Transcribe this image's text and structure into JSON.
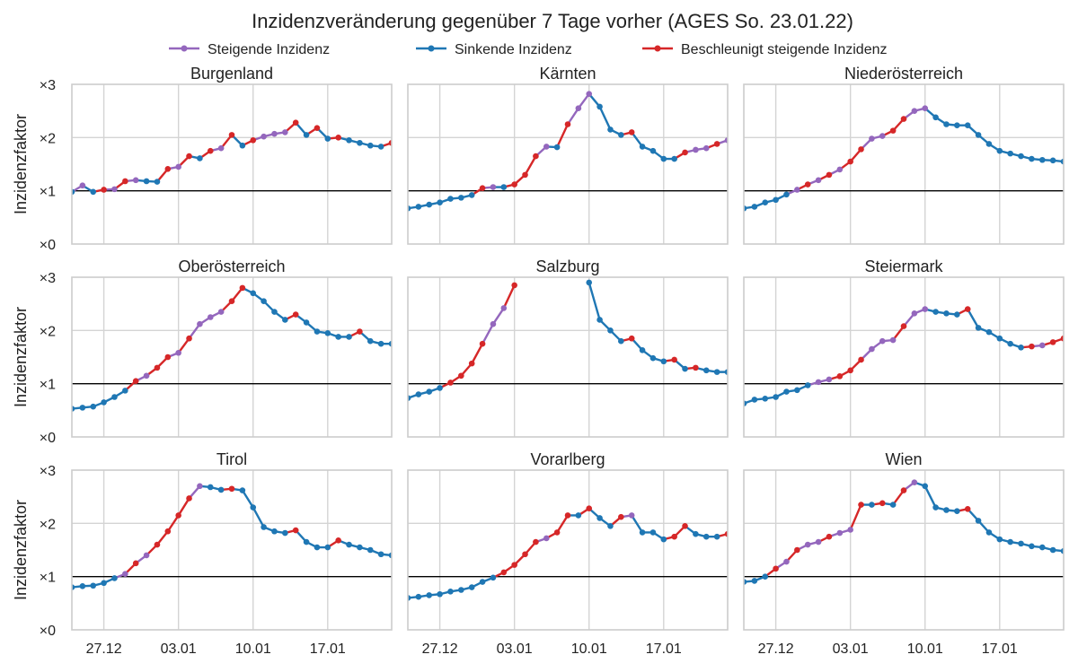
{
  "title": "Inzidenzveränderung gegenüber 7 Tage vorher (AGES So. 23.01.22)",
  "legend": [
    {
      "label": "Steigende Inzidenz",
      "color": "#9467bd"
    },
    {
      "label": "Sinkende Inzidenz",
      "color": "#1f77b4"
    },
    {
      "label": "Beschleunigt steigende Inzidenz",
      "color": "#d62728"
    }
  ],
  "axes": {
    "ylabel": "Inzidenzfaktor",
    "yticks": [
      "×0",
      "×1",
      "×2",
      "×3"
    ],
    "xticks": [
      {
        "label": "27.12",
        "day": 3
      },
      {
        "label": "03.01",
        "day": 10
      },
      {
        "label": "10.01",
        "day": 17
      },
      {
        "label": "17.01",
        "day": 24
      }
    ]
  },
  "chart_data": {
    "type": "line",
    "x_dates": [
      "24.12",
      "25.12",
      "26.12",
      "27.12",
      "28.12",
      "29.12",
      "30.12",
      "31.12",
      "01.01",
      "02.01",
      "03.01",
      "04.01",
      "05.01",
      "06.01",
      "07.01",
      "08.01",
      "09.01",
      "10.01",
      "11.01",
      "12.01",
      "13.01",
      "14.01",
      "15.01",
      "16.01",
      "17.01",
      "18.01",
      "19.01",
      "20.01",
      "21.01",
      "22.01",
      "23.01"
    ],
    "ylim": [
      0,
      3
    ],
    "reference_line": 1,
    "panels": [
      {
        "name": "Burgenland",
        "values": [
          0.98,
          1.1,
          0.98,
          1.02,
          1.03,
          1.18,
          1.2,
          1.18,
          1.17,
          1.41,
          1.45,
          1.65,
          1.61,
          1.75,
          1.8,
          2.05,
          1.85,
          1.95,
          2.02,
          2.07,
          2.1,
          2.28,
          2.05,
          2.18,
          1.98,
          2,
          1.95,
          1.9,
          1.85,
          1.83,
          1.9
        ]
      },
      {
        "name": "Kärnten",
        "values": [
          0.67,
          0.7,
          0.74,
          0.78,
          0.85,
          0.87,
          0.92,
          1.05,
          1.07,
          1.07,
          1.12,
          1.3,
          1.65,
          1.83,
          1.82,
          2.25,
          2.55,
          2.82,
          2.58,
          2.15,
          2.05,
          2.1,
          1.83,
          1.75,
          1.6,
          1.6,
          1.72,
          1.77,
          1.8,
          1.88,
          1.95
        ]
      },
      {
        "name": "Niederösterreich",
        "values": [
          0.67,
          0.7,
          0.78,
          0.83,
          0.93,
          1.02,
          1.12,
          1.2,
          1.3,
          1.4,
          1.55,
          1.78,
          1.98,
          2.03,
          2.13,
          2.35,
          2.5,
          2.55,
          2.38,
          2.25,
          2.23,
          2.23,
          2.05,
          1.88,
          1.75,
          1.7,
          1.65,
          1.6,
          1.58,
          1.57,
          1.55
        ]
      },
      {
        "name": "Oberösterreich",
        "values": [
          0.53,
          0.55,
          0.57,
          0.65,
          0.75,
          0.87,
          1.05,
          1.15,
          1.3,
          1.5,
          1.58,
          1.85,
          2.12,
          2.25,
          2.35,
          2.55,
          2.8,
          2.7,
          2.55,
          2.35,
          2.2,
          2.3,
          2.15,
          1.98,
          1.95,
          1.88,
          1.88,
          1.98,
          1.8,
          1.75,
          1.75
        ]
      },
      {
        "name": "Salzburg",
        "values": [
          0.73,
          0.8,
          0.85,
          0.92,
          1.02,
          1.15,
          1.38,
          1.75,
          2.12,
          2.42,
          2.85,
          null,
          null,
          null,
          null,
          null,
          null,
          2.9,
          2.2,
          2,
          1.8,
          1.85,
          1.63,
          1.48,
          1.42,
          1.45,
          1.28,
          1.3,
          1.25,
          1.22,
          1.22
        ]
      },
      {
        "name": "Steiermark",
        "values": [
          0.63,
          0.7,
          0.72,
          0.75,
          0.85,
          0.88,
          0.97,
          1.03,
          1.08,
          1.14,
          1.25,
          1.45,
          1.65,
          1.8,
          1.82,
          2.08,
          2.32,
          2.4,
          2.35,
          2.32,
          2.3,
          2.4,
          2.05,
          1.97,
          1.85,
          1.75,
          1.68,
          1.7,
          1.72,
          1.78,
          1.85
        ]
      },
      {
        "name": "Tirol",
        "values": [
          0.8,
          0.82,
          0.83,
          0.88,
          0.97,
          1.05,
          1.25,
          1.4,
          1.6,
          1.85,
          2.15,
          2.47,
          2.7,
          2.68,
          2.63,
          2.65,
          2.62,
          2.3,
          1.93,
          1.85,
          1.82,
          1.87,
          1.65,
          1.55,
          1.55,
          1.68,
          1.6,
          1.55,
          1.5,
          1.42,
          1.4
        ]
      },
      {
        "name": "Vorarlberg",
        "values": [
          0.6,
          0.62,
          0.65,
          0.67,
          0.72,
          0.75,
          0.8,
          0.9,
          0.98,
          1.08,
          1.22,
          1.42,
          1.65,
          1.72,
          1.83,
          2.15,
          2.15,
          2.28,
          2.1,
          1.95,
          2.12,
          2.15,
          1.83,
          1.83,
          1.7,
          1.75,
          1.95,
          1.8,
          1.75,
          1.75,
          1.8
        ]
      },
      {
        "name": "Wien",
        "values": [
          0.9,
          0.92,
          1,
          1.15,
          1.28,
          1.5,
          1.6,
          1.65,
          1.75,
          1.82,
          1.88,
          2.35,
          2.35,
          2.38,
          2.35,
          2.62,
          2.77,
          2.7,
          2.3,
          2.25,
          2.23,
          2.27,
          2.05,
          1.83,
          1.7,
          1.65,
          1.62,
          1.57,
          1.55,
          1.5,
          1.48
        ]
      }
    ]
  }
}
